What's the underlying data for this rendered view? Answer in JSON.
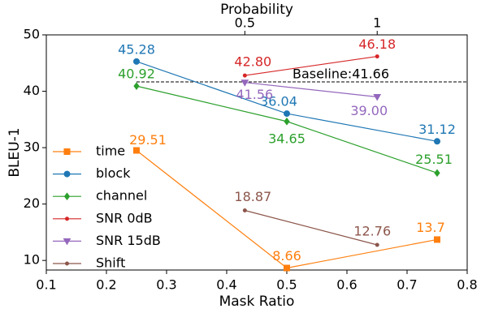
{
  "chart_data": {
    "type": "line",
    "xlabel": "Mask Ratio",
    "ylabel": "BLEU-1",
    "x2label": "Probability",
    "xlim": [
      0.1,
      0.8
    ],
    "xticks": [
      0.1,
      0.2,
      0.3,
      0.4,
      0.5,
      0.6,
      0.7,
      0.8
    ],
    "x2lim": [
      -0.25,
      1.34
    ],
    "x2ticks": [
      0.5,
      1
    ],
    "ylim": [
      8.3,
      50
    ],
    "yticks": [
      10,
      20,
      30,
      40,
      50
    ],
    "legend": "lower left",
    "baseline": {
      "value": 41.66,
      "label": "Baseline:41.66",
      "xrange": [
        0.25,
        0.8
      ]
    },
    "series": [
      {
        "name": "time",
        "color": "#ff7f0e",
        "marker": "square",
        "x": [
          0.25,
          0.5,
          0.75
        ],
        "values": [
          29.51,
          8.66,
          13.7
        ],
        "value_labels": [
          "29.51",
          "8.66",
          "13.7"
        ]
      },
      {
        "name": "block",
        "color": "#1f77b4",
        "marker": "circle",
        "x": [
          0.25,
          0.5,
          0.75
        ],
        "values": [
          45.28,
          36.04,
          31.12
        ],
        "value_labels": [
          "45.28",
          "36.04",
          "31.12"
        ]
      },
      {
        "name": "channel",
        "color": "#2ca02c",
        "marker": "diamond",
        "x": [
          0.25,
          0.5,
          0.75
        ],
        "values": [
          40.92,
          34.65,
          25.51
        ],
        "value_labels": [
          "40.92",
          "34.65",
          "25.51"
        ]
      },
      {
        "name": "SNR 0dB",
        "color": "#d62728",
        "marker": "dot",
        "axis": "x2",
        "x": [
          0.5,
          1
        ],
        "values": [
          42.8,
          46.18
        ],
        "value_labels": [
          "42.80",
          "46.18"
        ]
      },
      {
        "name": "SNR 15dB",
        "color": "#9467bd",
        "marker": "triangle",
        "axis": "x2",
        "x": [
          0.5,
          1
        ],
        "values": [
          41.56,
          39.0
        ],
        "value_labels": [
          "41.56",
          "39.00"
        ]
      },
      {
        "name": "Shift",
        "color": "#8c564b",
        "marker": "dot",
        "axis": "x2",
        "x": [
          0.5,
          1
        ],
        "values": [
          18.87,
          12.76
        ],
        "value_labels": [
          "18.87",
          "12.76"
        ]
      }
    ]
  }
}
